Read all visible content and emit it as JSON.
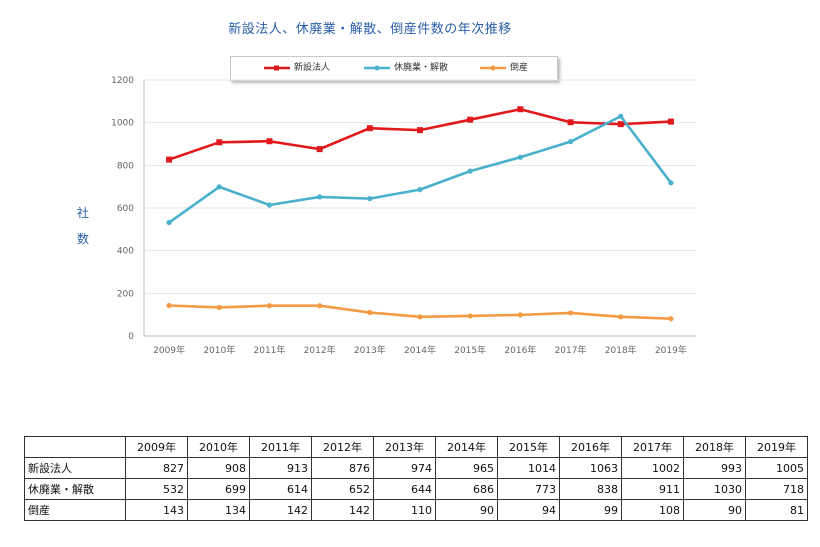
{
  "chart_data": {
    "type": "line",
    "title": "新設法人、休廃業・解散、倒産件数の年次推移",
    "ylabel": "社数",
    "categories": [
      "2009年",
      "2010年",
      "2011年",
      "2012年",
      "2013年",
      "2014年",
      "2015年",
      "2016年",
      "2017年",
      "2018年",
      "2019年"
    ],
    "ylim": [
      0,
      1200
    ],
    "yticks": [
      0,
      200,
      400,
      600,
      800,
      1000,
      1200
    ],
    "grid": true,
    "legend_position": "top",
    "series": [
      {
        "name": "新設法人",
        "color": "#e0191c",
        "values": [
          827,
          908,
          913,
          876,
          974,
          965,
          1014,
          1063,
          1002,
          993,
          1005
        ]
      },
      {
        "name": "休廃業・解散",
        "color": "#4ab1cc",
        "values": [
          532,
          699,
          614,
          652,
          644,
          686,
          773,
          838,
          911,
          1030,
          718
        ]
      },
      {
        "name": "倒産",
        "color": "#f39a44",
        "values": [
          143,
          134,
          142,
          142,
          110,
          90,
          94,
          99,
          108,
          90,
          81
        ]
      }
    ]
  },
  "table": {
    "corner": "",
    "headers": [
      "2009年",
      "2010年",
      "2011年",
      "2012年",
      "2013年",
      "2014年",
      "2015年",
      "2016年",
      "2017年",
      "2018年",
      "2019年"
    ],
    "rows": [
      {
        "label": "新設法人",
        "values": [
          "827",
          "908",
          "913",
          "876",
          "974",
          "965",
          "1014",
          "1063",
          "1002",
          "993",
          "1005"
        ]
      },
      {
        "label": "休廃業・解散",
        "values": [
          "532",
          "699",
          "614",
          "652",
          "644",
          "686",
          "773",
          "838",
          "911",
          "1030",
          "718"
        ]
      },
      {
        "label": "倒産",
        "values": [
          "143",
          "134",
          "142",
          "142",
          "110",
          "90",
          "94",
          "99",
          "108",
          "90",
          "81"
        ]
      }
    ]
  }
}
